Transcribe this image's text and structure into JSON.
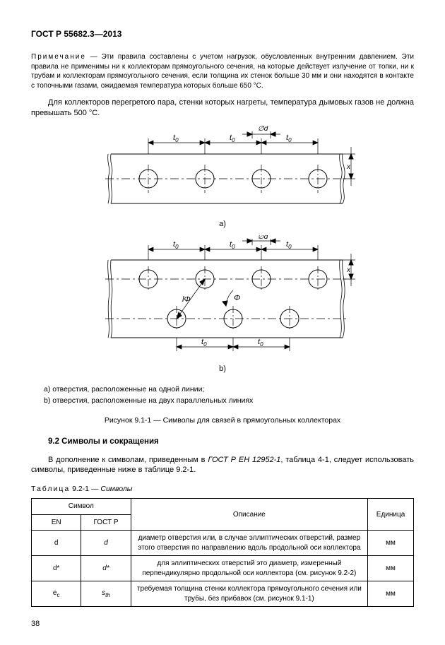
{
  "doc_id": "ГОСТ Р 55682.3—2013",
  "note_label": "Примечание",
  "note_text": " — Эти правила составлены с учетом нагрузок, обусловленных внутренним давлением. Эти правила не применимы ни к коллекторам прямоугольного сечения, на которые действует излучение от топки, ни к трубам и коллекторам прямоугольного сечения, если толщина их стенок больше 30 мм и они находятся в контакте с топочными газами, ожидаемая температура которых больше 650 °С.",
  "para1": "Для коллекторов перегретого пара, стенки которых нагреты, температура дымовых газов не должна превышать 500 °С.",
  "figA": {
    "label_a": "a)",
    "t0": "t",
    "t0_sub": "0",
    "emptyd": "∅d",
    "x": "x"
  },
  "figB": {
    "label_b": "b)",
    "t0": "t",
    "t0_sub": "0",
    "emptyd": "∅d",
    "x": "x",
    "phi": "Φ",
    "lphi": "lΦ"
  },
  "legend_a": "a) отверстия, расположенные на одной линии;",
  "legend_b": "b) отверстия, расположенные на двух параллельных линиях",
  "figure_title": "Рисунок 9.1-1 — Символы для связей в прямоугольных коллекторах",
  "section_92": "9.2 Символы и сокращения",
  "para2_a": "В дополнение к символам, приведенным в ",
  "para2_ref": "ГОСТ Р ЕН 12952-1",
  "para2_b": ", таблица 4-1, следует использовать символы, приведенные ниже в таблице 9.2-1.",
  "table_caption_label": "Таблица",
  "table_caption_rest": " 9.2-1 — ",
  "table_caption_title": "Символы",
  "headers": {
    "symbol": "Символ",
    "en": "EN",
    "gost": "ГОСТ Р",
    "desc": "Описание",
    "unit": "Единица"
  },
  "rows": [
    {
      "en": "d",
      "gost": "d",
      "desc": "диаметр отверстия или, в случае эллиптических отверстий, размер этого отверстия по направлению вдоль продольной оси коллектора",
      "unit": "мм"
    },
    {
      "en": "d*",
      "gost": "d*",
      "desc": "для эллиптических отверстий это диаметр, измеренный перпендикулярно продольной оси коллектора (см. рисунок 9.2-2)",
      "unit": "мм"
    },
    {
      "en": "e_c",
      "gost": "s_th",
      "desc": "требуемая толщина стенки коллектора прямоугольного сечения или трубы, без прибавок (см. рисунок 9.1-1)",
      "unit": "мм"
    }
  ],
  "page_num": "38",
  "svg": {
    "stroke": "#000000",
    "thin": 0.8,
    "med": 1.0,
    "dash": "6 3"
  }
}
